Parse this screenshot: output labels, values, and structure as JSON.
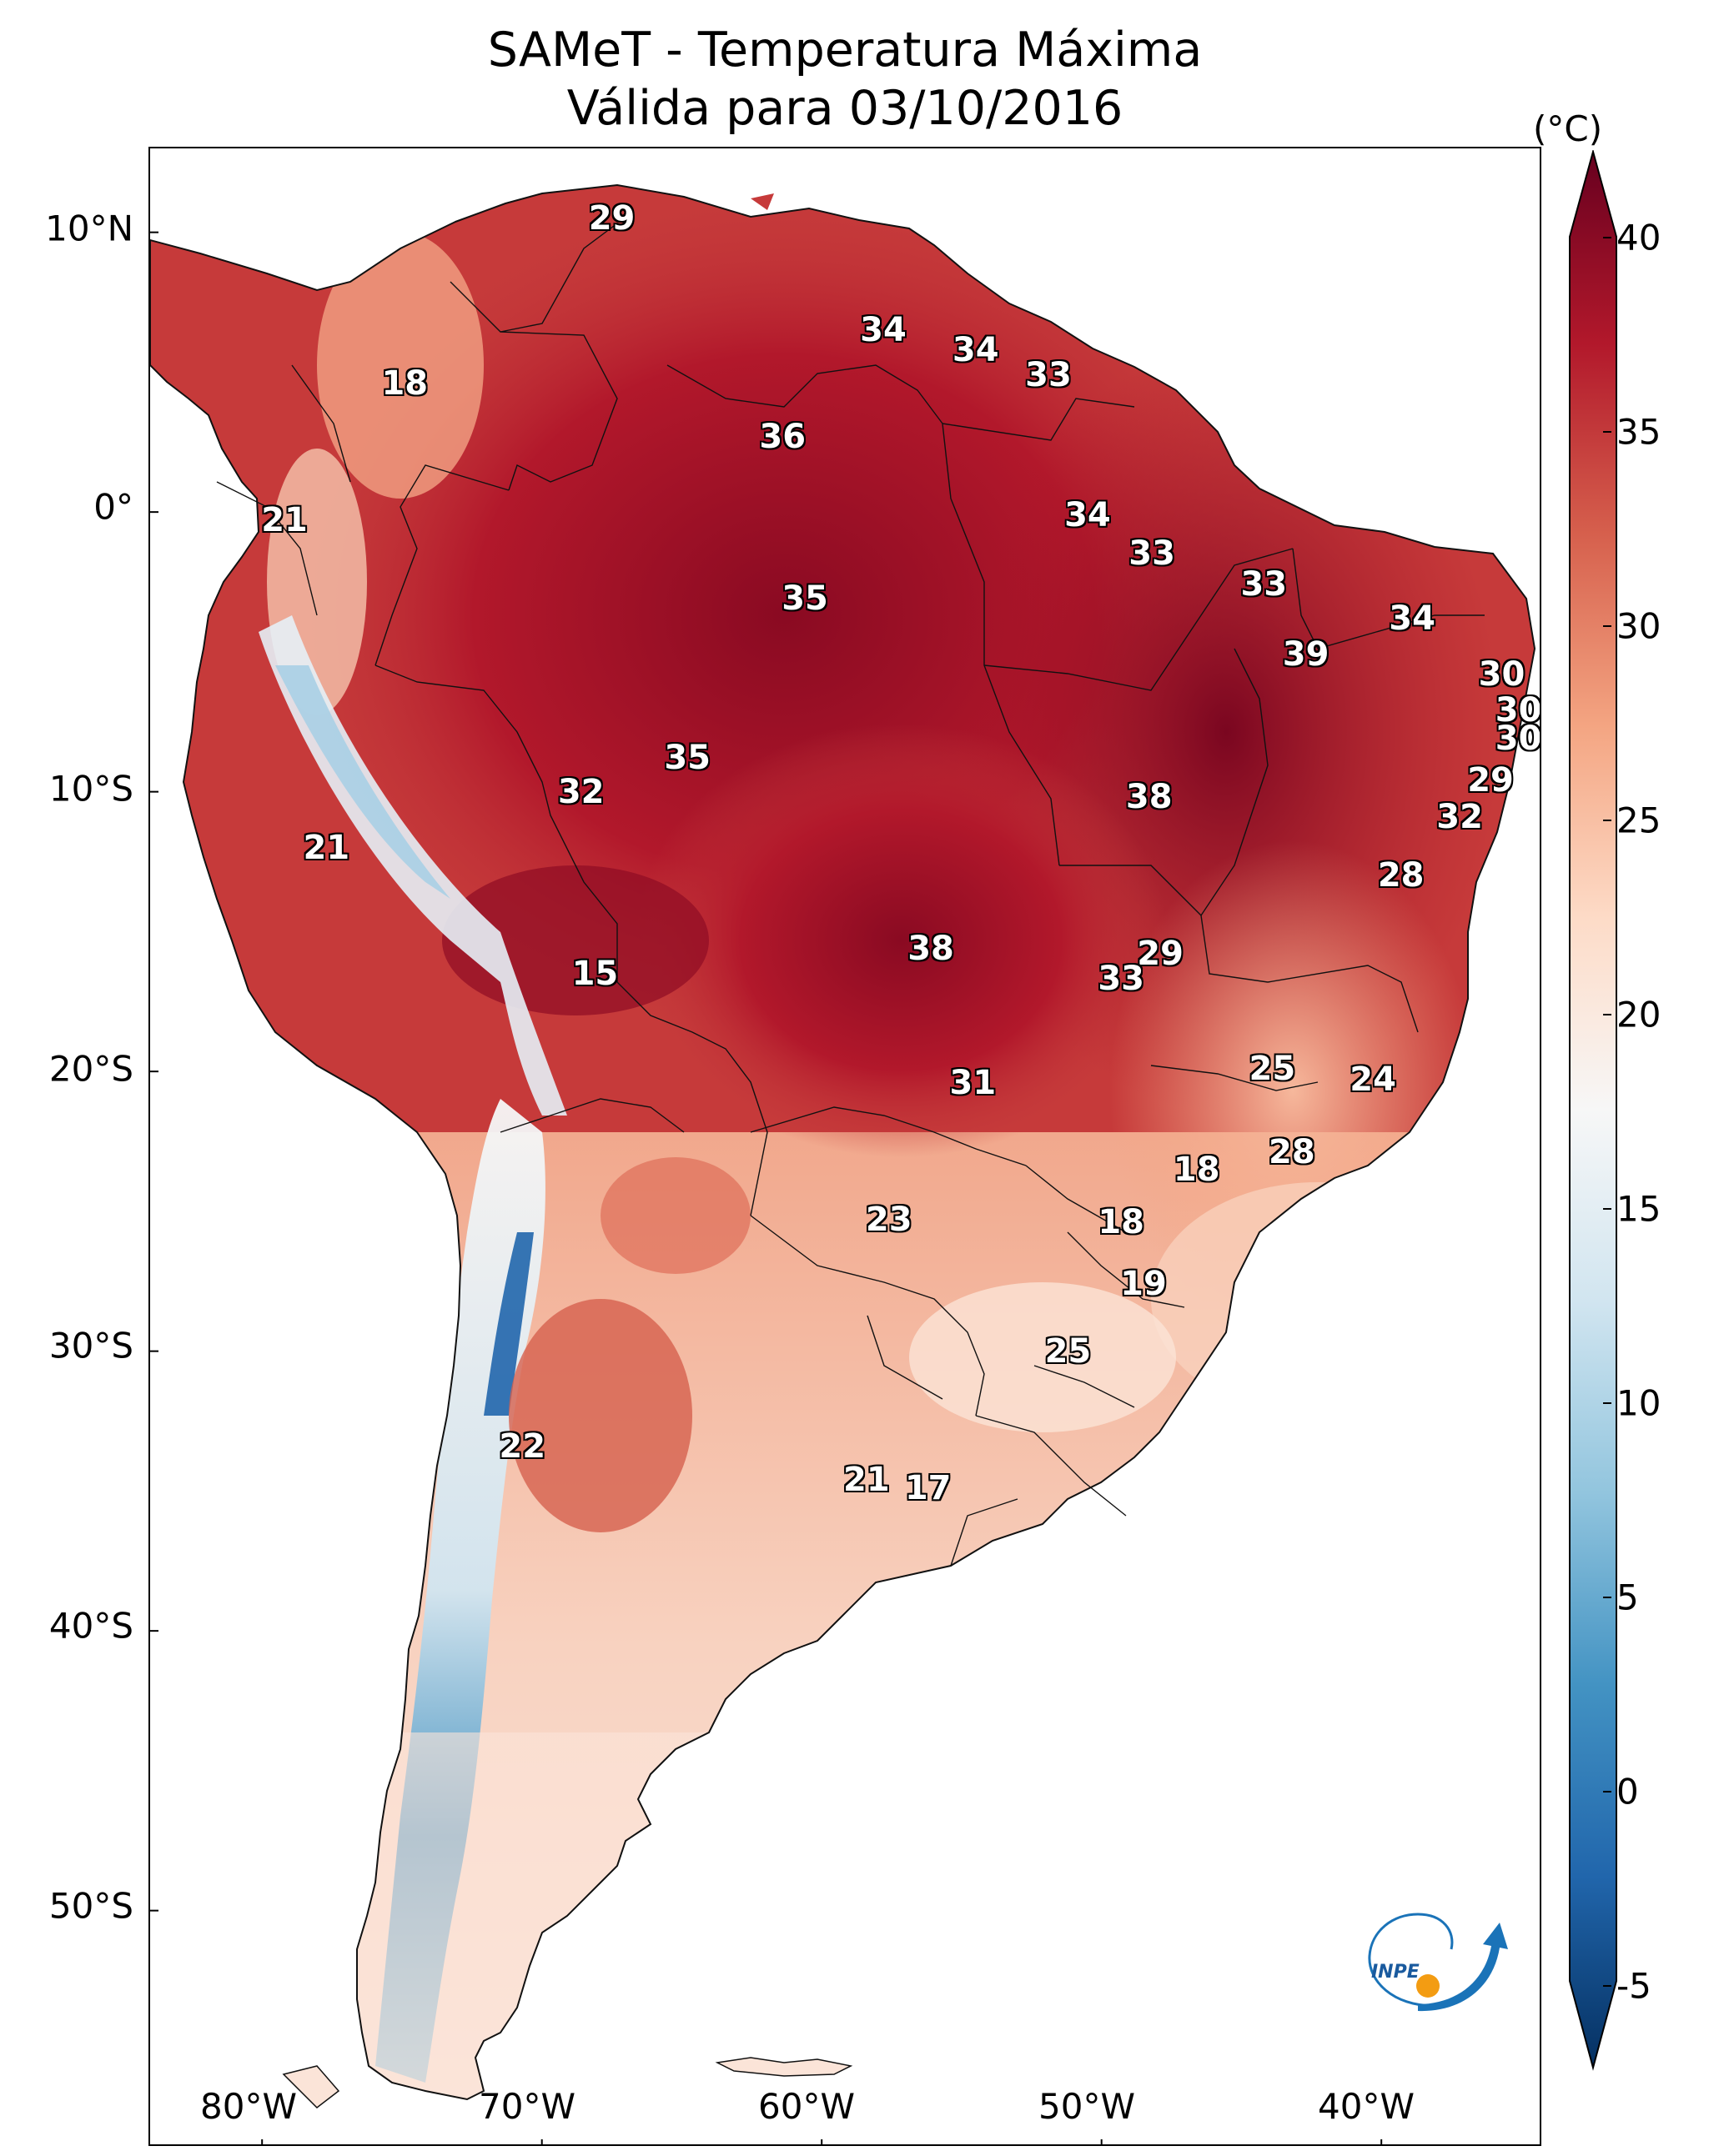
{
  "title": {
    "line1": "SAMeT - Temperatura Máxima",
    "line2": "Válida para 03/10/2016"
  },
  "axes": {
    "lat_labels": [
      "10°N",
      "0°",
      "10°S",
      "20°S",
      "30°S",
      "40°S",
      "50°S"
    ],
    "lon_labels": [
      "80°W",
      "70°W",
      "60°W",
      "50°W",
      "40°W"
    ]
  },
  "colorbar": {
    "unit": "(°C)",
    "ticks": [
      "40",
      "35",
      "30",
      "25",
      "20",
      "15",
      "10",
      "5",
      "0",
      "-5"
    ],
    "colors": [
      "#67001f",
      "#b2182b",
      "#d6604d",
      "#f4a582",
      "#fddbc7",
      "#f7f7f7",
      "#d1e5f0",
      "#92c5de",
      "#4393c3",
      "#2166ac",
      "#053061"
    ]
  },
  "station_values": [
    {
      "value": "29",
      "lon": -67.5,
      "lat": 10.5
    },
    {
      "value": "34",
      "lon": -57.8,
      "lat": 6.5
    },
    {
      "value": "34",
      "lon": -54.5,
      "lat": 5.8
    },
    {
      "value": "33",
      "lon": -51.9,
      "lat": 4.9
    },
    {
      "value": "18",
      "lon": -74.9,
      "lat": 4.6
    },
    {
      "value": "36",
      "lon": -61.4,
      "lat": 2.7
    },
    {
      "value": "21",
      "lon": -79.2,
      "lat": -0.3
    },
    {
      "value": "34",
      "lon": -50.5,
      "lat": -0.1
    },
    {
      "value": "33",
      "lon": -48.2,
      "lat": -1.5
    },
    {
      "value": "35",
      "lon": -60.6,
      "lat": -3.1
    },
    {
      "value": "33",
      "lon": -44.2,
      "lat": -2.6
    },
    {
      "value": "34",
      "lon": -38.9,
      "lat": -3.8
    },
    {
      "value": "39",
      "lon": -42.7,
      "lat": -5.1
    },
    {
      "value": "30",
      "lon": -35.7,
      "lat": -5.8
    },
    {
      "value": "30",
      "lon": -35.1,
      "lat": -7.1
    },
    {
      "value": "30",
      "lon": -35.1,
      "lat": -8.1
    },
    {
      "value": "35",
      "lon": -64.8,
      "lat": -8.8
    },
    {
      "value": "32",
      "lon": -68.6,
      "lat": -10.0
    },
    {
      "value": "38",
      "lon": -48.3,
      "lat": -10.2
    },
    {
      "value": "29",
      "lon": -36.1,
      "lat": -9.6
    },
    {
      "value": "32",
      "lon": -37.2,
      "lat": -10.9
    },
    {
      "value": "21",
      "lon": -77.7,
      "lat": -12.0
    },
    {
      "value": "28",
      "lon": -39.3,
      "lat": -13.0
    },
    {
      "value": "15",
      "lon": -68.1,
      "lat": -16.5
    },
    {
      "value": "38",
      "lon": -56.1,
      "lat": -15.6
    },
    {
      "value": "29",
      "lon": -47.9,
      "lat": -15.8
    },
    {
      "value": "33",
      "lon": -49.3,
      "lat": -16.7
    },
    {
      "value": "25",
      "lon": -43.9,
      "lat": -19.9
    },
    {
      "value": "24",
      "lon": -40.3,
      "lat": -20.3
    },
    {
      "value": "31",
      "lon": -54.6,
      "lat": -20.4
    },
    {
      "value": "28",
      "lon": -43.2,
      "lat": -22.9
    },
    {
      "value": "18",
      "lon": -46.6,
      "lat": -23.5
    },
    {
      "value": "23",
      "lon": -57.6,
      "lat": -25.3
    },
    {
      "value": "18",
      "lon": -49.3,
      "lat": -25.4
    },
    {
      "value": "19",
      "lon": -48.5,
      "lat": -27.6
    },
    {
      "value": "25",
      "lon": -51.2,
      "lat": -30.0
    },
    {
      "value": "22",
      "lon": -70.7,
      "lat": -33.4
    },
    {
      "value": "21",
      "lon": -58.4,
      "lat": -34.6
    },
    {
      "value": "17",
      "lon": -56.2,
      "lat": -34.9
    }
  ],
  "logo": {
    "text": "INPE"
  }
}
